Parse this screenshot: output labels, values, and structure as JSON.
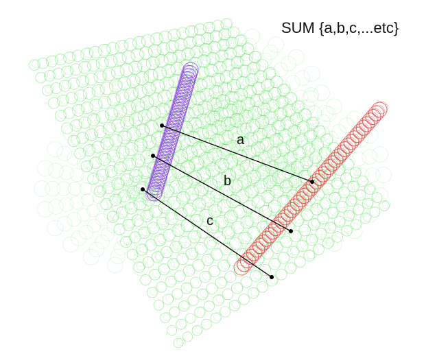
{
  "title": "SUM {a,b,c,...etc}",
  "segments": [
    {
      "label": "a"
    },
    {
      "label": "b"
    },
    {
      "label": "c"
    }
  ],
  "colors": {
    "lattice": "#5fe05f",
    "purple_column": "#8a3fe0",
    "red_column": "#e04040",
    "lines": "#000000"
  }
}
